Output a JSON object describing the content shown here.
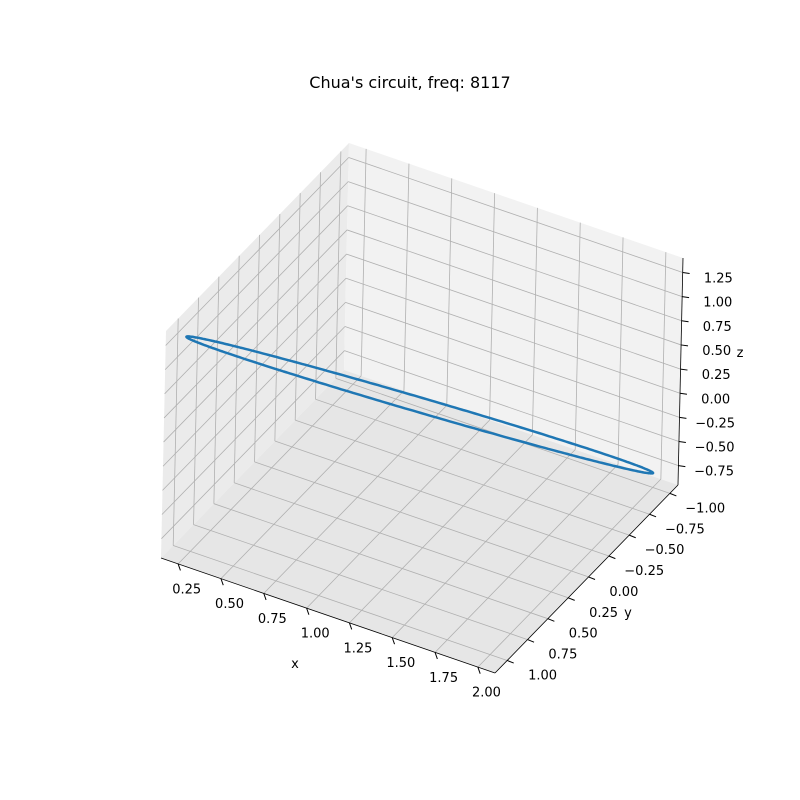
{
  "chart_data": {
    "type": "line",
    "title": "Chua's circuit, freq: 8117",
    "xlabel": "x",
    "ylabel": "y",
    "zlabel": "z",
    "xlim": [
      0.15,
      2.1
    ],
    "ylim": [
      -1.1,
      1.15
    ],
    "zlim": [
      -0.95,
      1.4
    ],
    "xticks": [
      0.25,
      0.5,
      0.75,
      1.0,
      1.25,
      1.5,
      1.75,
      2.0
    ],
    "xtick_labels": [
      "0.25",
      "0.50",
      "0.75",
      "1.00",
      "1.25",
      "1.50",
      "1.75",
      "2.00"
    ],
    "yticks": [
      -1.0,
      -0.75,
      -0.5,
      -0.25,
      0.0,
      0.25,
      0.5,
      0.75,
      1.0
    ],
    "ytick_labels": [
      "−1.00",
      "−0.75",
      "−0.50",
      "−0.25",
      "0.00",
      "0.25",
      "0.50",
      "0.75",
      "1.00"
    ],
    "zticks": [
      -0.75,
      -0.5,
      -0.25,
      0.0,
      0.25,
      0.5,
      0.75,
      1.0,
      1.25
    ],
    "ztick_labels": [
      "−0.75",
      "−0.50",
      "−0.25",
      "0.00",
      "0.25",
      "0.50",
      "0.75",
      "1.00",
      "1.25"
    ],
    "grid": true,
    "series": [
      {
        "color": "#1f77b4",
        "curve": "closed loop (ellipse)",
        "center": [
          1.1,
          0.0,
          0.22
        ],
        "extreme_points": [
          [
            0.2,
            1.0,
            1.25
          ],
          [
            2.0,
            -1.0,
            -0.8
          ]
        ],
        "minor_offset": [
          0.02,
          0.025,
          -0.05
        ]
      }
    ]
  }
}
